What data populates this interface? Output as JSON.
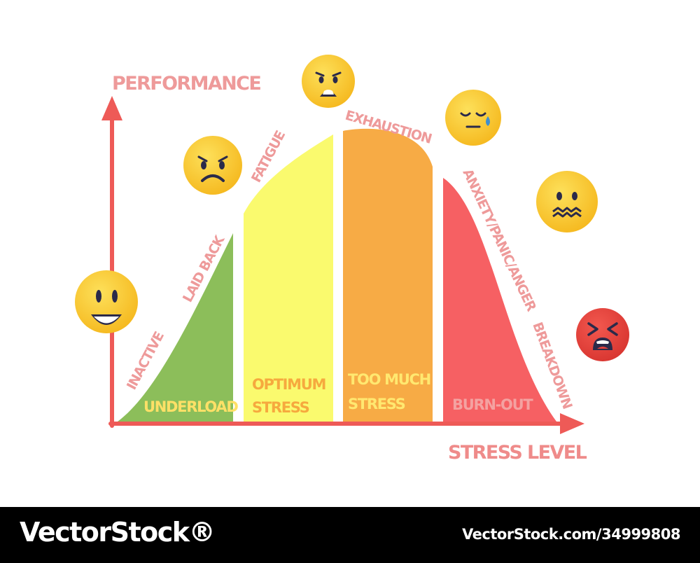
{
  "axes": {
    "y_label": "PERFORMANCE",
    "x_label": "STRESS LEVEL"
  },
  "zones": [
    {
      "lines": [
        "UNDERLOAD"
      ],
      "fill": "#8cbe5a",
      "text_color": "#ffe067"
    },
    {
      "lines": [
        "OPTIMUM",
        "STRESS"
      ],
      "fill": "#fafa6e",
      "text_color": "#f6a93e"
    },
    {
      "lines": [
        "TOO MUCH",
        "STRESS"
      ],
      "fill": "#f7ab45",
      "text_color": "#ffe870"
    },
    {
      "lines": [
        "BURN-OUT"
      ],
      "fill": "#f66063",
      "text_color": "#f4a2a1"
    }
  ],
  "curve_labels": {
    "inactive": "INACTIVE",
    "laid_back": "LAID BACK",
    "fatigue": "FATIGUE",
    "exhaustion": "EXHAUSTION",
    "anxiety": "ANXIETY/PANIC/ANGER",
    "breakdown": "BREAKDOWN"
  },
  "emojis": [
    {
      "mood": "happy-face-icon",
      "color": "#f9c531"
    },
    {
      "mood": "sad-face-icon",
      "color": "#f9c531"
    },
    {
      "mood": "worried-face-icon",
      "color": "#f9c531"
    },
    {
      "mood": "crying-face-icon",
      "color": "#f9c531"
    },
    {
      "mood": "anxious-face-icon",
      "color": "#f9c531"
    },
    {
      "mood": "angry-face-icon",
      "color": "#e8413c"
    }
  ],
  "colors": {
    "axis": "#ee5a57",
    "label_pink": "#ee9a9a",
    "stress_level_label": "#ef8b8a"
  },
  "footer": {
    "brand": "VectorStock®",
    "stock_id": "VectorStock.com/34999808"
  }
}
